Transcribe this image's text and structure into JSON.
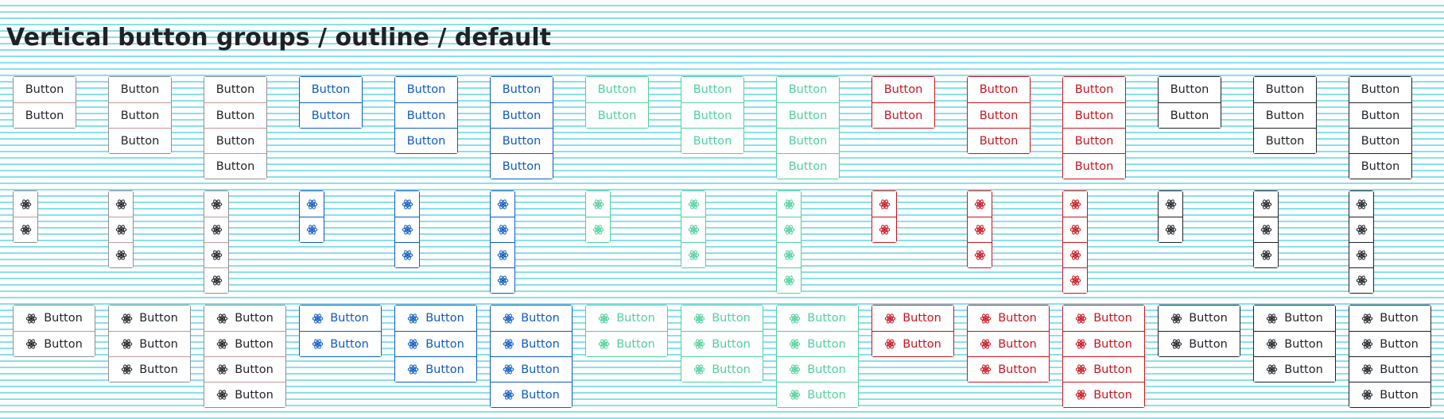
{
  "page": {
    "title": "Vertical button groups / outline / default"
  },
  "button_label": "Button",
  "icon": "atom-icon",
  "colors": {
    "secondary": "#1e2227",
    "primary": "#0d5bc2",
    "success": "#4fd19c",
    "danger": "#c9141f",
    "dark": "#1e2227",
    "gridline": "#88e0ea"
  },
  "variants": [
    "secondary",
    "primary",
    "success",
    "danger",
    "dark"
  ],
  "group_sizes": [
    2,
    3,
    4
  ],
  "rows": [
    {
      "kind": "text"
    },
    {
      "kind": "icon"
    },
    {
      "kind": "both"
    }
  ]
}
